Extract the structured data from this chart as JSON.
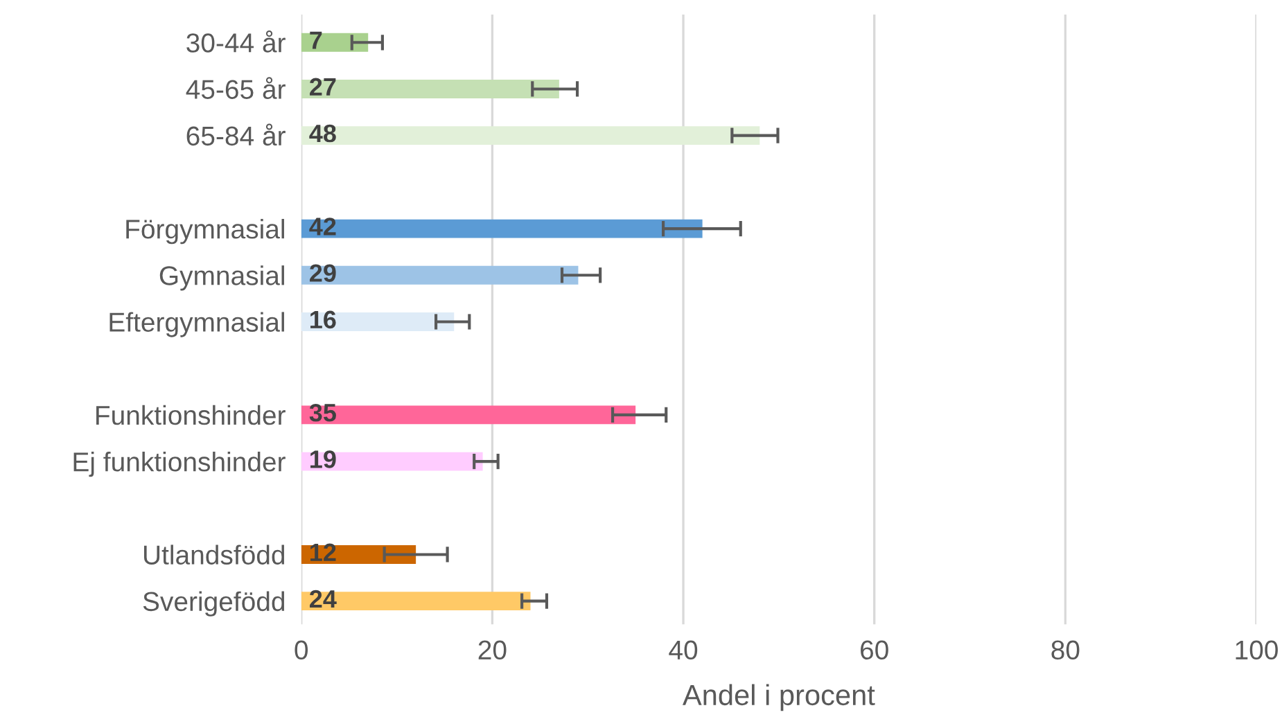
{
  "chart_data": {
    "type": "bar",
    "orientation": "horizontal",
    "xlabel": "Andel i procent",
    "categories": [
      "30-44 år",
      "45-65 år",
      "65-84 år",
      null,
      "Förgymnasial",
      "Gymnasial",
      "Eftergymnasial",
      null,
      "Funktionshinder",
      "Ej funktionshinder",
      null,
      "Utlandsfödd",
      "Sverigefödd"
    ],
    "values": [
      7,
      27,
      48,
      null,
      42,
      29,
      16,
      null,
      35,
      19,
      null,
      12,
      24
    ],
    "colors": [
      "#a9d18e",
      "#c5e0b4",
      "#e2f0d9",
      "#ffffff",
      "#5b9bd5",
      "#9dc3e6",
      "#deebf7",
      "#ffffff",
      "#ff6699",
      "#ffccff",
      "#ffffff",
      "#cc6600",
      "#ffc966"
    ],
    "errors": [
      [
        5.3,
        8.5
      ],
      [
        24.2,
        28.9
      ],
      [
        45.1,
        49.9
      ],
      null,
      [
        37.9,
        46.0
      ],
      [
        27.3,
        31.3
      ],
      [
        14.1,
        17.6
      ],
      null,
      [
        32.6,
        38.2
      ],
      [
        18.1,
        20.6
      ],
      null,
      [
        8.7,
        15.3
      ],
      [
        23.1,
        25.7
      ]
    ],
    "data_labels": true,
    "xlim": [
      0,
      100
    ],
    "xticks": [
      0,
      20,
      40,
      60,
      80,
      100
    ],
    "grid": "x",
    "legend": false
  }
}
